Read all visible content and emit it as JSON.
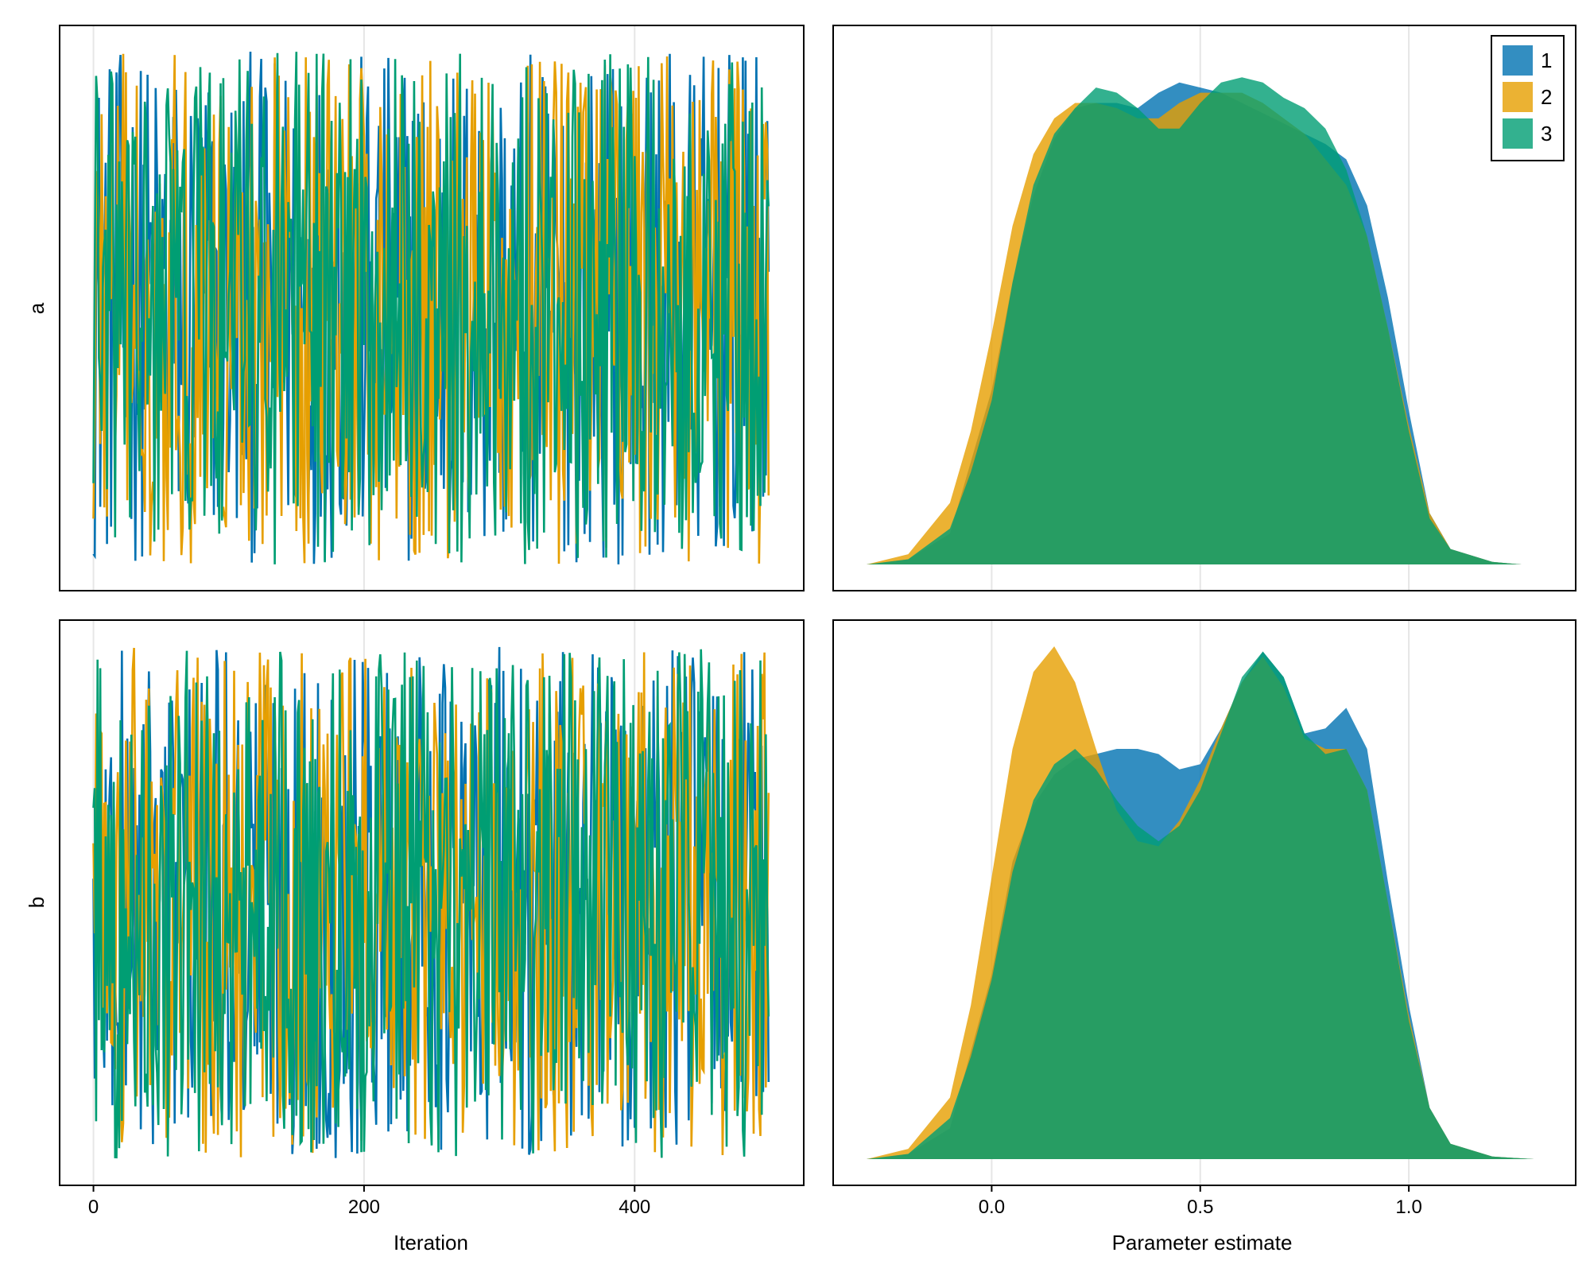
{
  "chart_data": {
    "type": "mcmc-trace-density",
    "parameters": [
      "a",
      "b"
    ],
    "chains": [
      {
        "name": "1",
        "color": "#0072B2"
      },
      {
        "name": "2",
        "color": "#E69F00"
      },
      {
        "name": "3",
        "color": "#009E73"
      }
    ],
    "trace": {
      "xlabel": "Iteration",
      "x_ticks": [
        0,
        200,
        400
      ],
      "xlim": [
        -25,
        525
      ],
      "n_iterations": 500,
      "value_range": [
        0,
        1
      ]
    },
    "density": {
      "xlabel": "Parameter estimate",
      "x_ticks": [
        0.0,
        0.5,
        1.0
      ],
      "x_tick_labels": [
        "0.0",
        "0.5",
        "1.0"
      ],
      "xlim": [
        -0.38,
        1.4
      ],
      "legend_position": "top-right",
      "curves": {
        "a": {
          "1": [
            [
              -0.3,
              0
            ],
            [
              -0.2,
              0.01
            ],
            [
              -0.1,
              0.06
            ],
            [
              0,
              0.34
            ],
            [
              0.05,
              0.55
            ],
            [
              0.1,
              0.72
            ],
            [
              0.15,
              0.83
            ],
            [
              0.2,
              0.89
            ],
            [
              0.25,
              0.9
            ],
            [
              0.3,
              0.9
            ],
            [
              0.35,
              0.89
            ],
            [
              0.4,
              0.92
            ],
            [
              0.45,
              0.94
            ],
            [
              0.5,
              0.93
            ],
            [
              0.55,
              0.92
            ],
            [
              0.6,
              0.9
            ],
            [
              0.65,
              0.88
            ],
            [
              0.7,
              0.86
            ],
            [
              0.75,
              0.84
            ],
            [
              0.8,
              0.82
            ],
            [
              0.85,
              0.79
            ],
            [
              0.9,
              0.7
            ],
            [
              0.95,
              0.52
            ],
            [
              1.0,
              0.3
            ],
            [
              1.05,
              0.1
            ],
            [
              1.1,
              0.03
            ],
            [
              1.2,
              0.005
            ],
            [
              1.27,
              0
            ]
          ],
          "2": [
            [
              -0.3,
              0
            ],
            [
              -0.2,
              0.02
            ],
            [
              -0.1,
              0.12
            ],
            [
              -0.05,
              0.26
            ],
            [
              0,
              0.45
            ],
            [
              0.05,
              0.66
            ],
            [
              0.1,
              0.8
            ],
            [
              0.15,
              0.87
            ],
            [
              0.2,
              0.9
            ],
            [
              0.25,
              0.9
            ],
            [
              0.3,
              0.89
            ],
            [
              0.35,
              0.87
            ],
            [
              0.4,
              0.87
            ],
            [
              0.45,
              0.9
            ],
            [
              0.5,
              0.92
            ],
            [
              0.55,
              0.92
            ],
            [
              0.6,
              0.92
            ],
            [
              0.65,
              0.9
            ],
            [
              0.7,
              0.87
            ],
            [
              0.75,
              0.84
            ],
            [
              0.8,
              0.79
            ],
            [
              0.85,
              0.74
            ],
            [
              0.9,
              0.64
            ],
            [
              0.95,
              0.46
            ],
            [
              1.0,
              0.27
            ],
            [
              1.05,
              0.1
            ],
            [
              1.1,
              0.03
            ],
            [
              1.2,
              0.005
            ],
            [
              1.27,
              0
            ]
          ],
          "3": [
            [
              -0.3,
              0
            ],
            [
              -0.2,
              0.01
            ],
            [
              -0.1,
              0.07
            ],
            [
              -0.05,
              0.18
            ],
            [
              0,
              0.32
            ],
            [
              0.05,
              0.55
            ],
            [
              0.1,
              0.74
            ],
            [
              0.15,
              0.84
            ],
            [
              0.2,
              0.89
            ],
            [
              0.25,
              0.93
            ],
            [
              0.3,
              0.92
            ],
            [
              0.35,
              0.89
            ],
            [
              0.4,
              0.85
            ],
            [
              0.45,
              0.85
            ],
            [
              0.5,
              0.9
            ],
            [
              0.55,
              0.94
            ],
            [
              0.6,
              0.95
            ],
            [
              0.65,
              0.94
            ],
            [
              0.7,
              0.91
            ],
            [
              0.75,
              0.89
            ],
            [
              0.8,
              0.85
            ],
            [
              0.85,
              0.77
            ],
            [
              0.9,
              0.64
            ],
            [
              0.95,
              0.46
            ],
            [
              1.0,
              0.26
            ],
            [
              1.05,
              0.09
            ],
            [
              1.1,
              0.03
            ],
            [
              1.2,
              0.005
            ],
            [
              1.27,
              0
            ]
          ]
        },
        "b": {
          "1": [
            [
              -0.3,
              0
            ],
            [
              -0.2,
              0.01
            ],
            [
              -0.1,
              0.06
            ],
            [
              0,
              0.36
            ],
            [
              0.05,
              0.58
            ],
            [
              0.1,
              0.69
            ],
            [
              0.15,
              0.75
            ],
            [
              0.2,
              0.78
            ],
            [
              0.25,
              0.79
            ],
            [
              0.3,
              0.8
            ],
            [
              0.35,
              0.8
            ],
            [
              0.4,
              0.79
            ],
            [
              0.45,
              0.76
            ],
            [
              0.5,
              0.77
            ],
            [
              0.55,
              0.84
            ],
            [
              0.6,
              0.93
            ],
            [
              0.65,
              0.99
            ],
            [
              0.7,
              0.94
            ],
            [
              0.75,
              0.83
            ],
            [
              0.8,
              0.84
            ],
            [
              0.85,
              0.88
            ],
            [
              0.9,
              0.8
            ],
            [
              0.95,
              0.54
            ],
            [
              1.0,
              0.3
            ],
            [
              1.05,
              0.1
            ],
            [
              1.1,
              0.03
            ],
            [
              1.2,
              0.005
            ],
            [
              1.3,
              0
            ]
          ],
          "2": [
            [
              -0.3,
              0
            ],
            [
              -0.2,
              0.02
            ],
            [
              -0.1,
              0.12
            ],
            [
              -0.05,
              0.3
            ],
            [
              0,
              0.55
            ],
            [
              0.05,
              0.8
            ],
            [
              0.1,
              0.95
            ],
            [
              0.15,
              1.0
            ],
            [
              0.2,
              0.93
            ],
            [
              0.25,
              0.8
            ],
            [
              0.3,
              0.68
            ],
            [
              0.35,
              0.62
            ],
            [
              0.4,
              0.61
            ],
            [
              0.45,
              0.66
            ],
            [
              0.5,
              0.74
            ],
            [
              0.55,
              0.84
            ],
            [
              0.6,
              0.93
            ],
            [
              0.65,
              0.98
            ],
            [
              0.7,
              0.92
            ],
            [
              0.75,
              0.82
            ],
            [
              0.8,
              0.8
            ],
            [
              0.85,
              0.8
            ],
            [
              0.9,
              0.72
            ],
            [
              0.95,
              0.5
            ],
            [
              1.0,
              0.28
            ],
            [
              1.05,
              0.1
            ],
            [
              1.1,
              0.03
            ],
            [
              1.2,
              0.005
            ],
            [
              1.3,
              0
            ]
          ],
          "3": [
            [
              -0.3,
              0
            ],
            [
              -0.2,
              0.01
            ],
            [
              -0.1,
              0.08
            ],
            [
              -0.05,
              0.2
            ],
            [
              0,
              0.35
            ],
            [
              0.05,
              0.56
            ],
            [
              0.1,
              0.7
            ],
            [
              0.15,
              0.77
            ],
            [
              0.2,
              0.8
            ],
            [
              0.25,
              0.76
            ],
            [
              0.3,
              0.7
            ],
            [
              0.35,
              0.65
            ],
            [
              0.4,
              0.62
            ],
            [
              0.45,
              0.65
            ],
            [
              0.5,
              0.72
            ],
            [
              0.55,
              0.83
            ],
            [
              0.6,
              0.94
            ],
            [
              0.65,
              0.99
            ],
            [
              0.7,
              0.94
            ],
            [
              0.75,
              0.83
            ],
            [
              0.8,
              0.79
            ],
            [
              0.85,
              0.8
            ],
            [
              0.9,
              0.72
            ],
            [
              0.95,
              0.5
            ],
            [
              1.0,
              0.27
            ],
            [
              1.05,
              0.1
            ],
            [
              1.1,
              0.03
            ],
            [
              1.2,
              0.005
            ],
            [
              1.3,
              0
            ]
          ]
        }
      }
    }
  }
}
